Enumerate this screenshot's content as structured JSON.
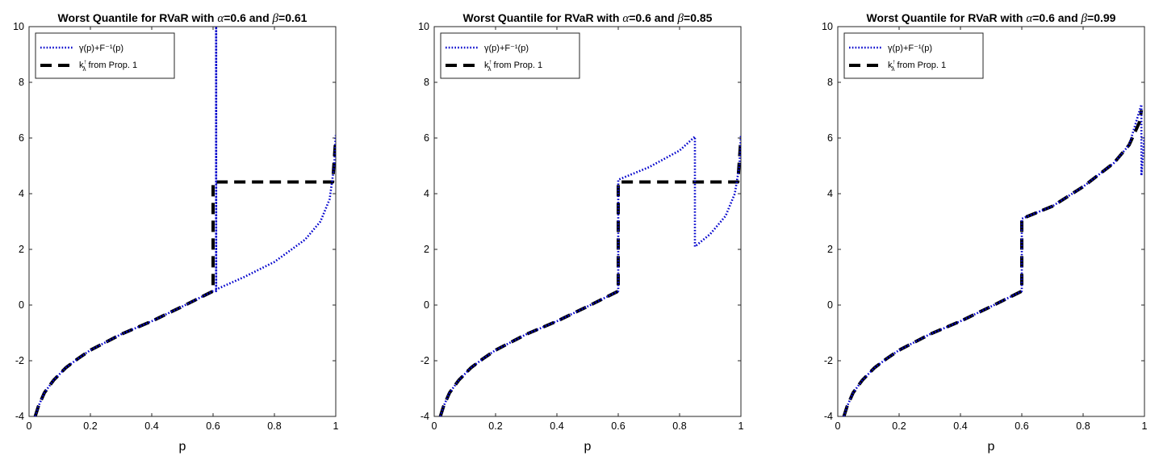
{
  "chart_data": [
    {
      "type": "line",
      "title": "Worst Quantile for RVaR with α=0.6 and β=0.61",
      "title_parts": {
        "lead": "Worst Quantile for RVaR with ",
        "alpha_sym": "α",
        "alpha_val": "=0.6 and ",
        "beta_sym": "β",
        "beta_val": "=0.61"
      },
      "alpha": 0.6,
      "beta": 0.61,
      "xlabel": "p",
      "ylabel": "",
      "xlim": [
        0,
        1
      ],
      "ylim": [
        -4,
        10
      ],
      "xticks": [
        0,
        0.2,
        0.4,
        0.6,
        0.8,
        1
      ],
      "xtick_labels": [
        "0",
        "0.2",
        "0.4",
        "0.6",
        "0.8",
        "1"
      ],
      "yticks": [
        -4,
        -2,
        0,
        2,
        4,
        6,
        8,
        10
      ],
      "ytick_labels": [
        "-4",
        "-2",
        "0",
        "2",
        "4",
        "6",
        "8",
        "10"
      ],
      "legend_position": "top-left",
      "series": [
        {
          "name": "γ(p)+F⁻¹(p)",
          "color": "#0000cc",
          "style": "dotted",
          "points": [
            [
              0.02,
              -4.0
            ],
            [
              0.03,
              -3.65
            ],
            [
              0.05,
              -3.15
            ],
            [
              0.08,
              -2.7
            ],
            [
              0.12,
              -2.25
            ],
            [
              0.16,
              -1.92
            ],
            [
              0.2,
              -1.62
            ],
            [
              0.3,
              -1.05
            ],
            [
              0.4,
              -0.58
            ],
            [
              0.5,
              -0.05
            ],
            [
              0.6,
              0.5
            ],
            [
              0.61,
              0.5
            ],
            [
              0.61,
              10
            ],
            [
              0.61,
              0.56
            ],
            [
              0.7,
              1.0
            ],
            [
              0.8,
              1.55
            ],
            [
              0.9,
              2.35
            ],
            [
              0.95,
              3.0
            ],
            [
              0.98,
              3.8
            ],
            [
              0.995,
              5.0
            ],
            [
              1.0,
              6.1
            ]
          ]
        },
        {
          "name": "k_λ^↑ from Prop. 1",
          "name_parts": {
            "base": "k",
            "sup": "↑",
            "sub": "λ",
            "rest": " from Prop. 1"
          },
          "color": "#000000",
          "style": "dashed",
          "points": [
            [
              0.02,
              -4.0
            ],
            [
              0.03,
              -3.65
            ],
            [
              0.05,
              -3.15
            ],
            [
              0.08,
              -2.7
            ],
            [
              0.12,
              -2.25
            ],
            [
              0.16,
              -1.92
            ],
            [
              0.2,
              -1.62
            ],
            [
              0.3,
              -1.05
            ],
            [
              0.4,
              -0.58
            ],
            [
              0.5,
              -0.05
            ],
            [
              0.6,
              0.5
            ],
            [
              0.6,
              4.42
            ],
            [
              0.99,
              4.42
            ],
            [
              1.0,
              6.0
            ]
          ]
        }
      ]
    },
    {
      "type": "line",
      "title": "Worst Quantile for RVaR with α=0.6 and β=0.85",
      "title_parts": {
        "lead": "Worst Quantile for RVaR with ",
        "alpha_sym": "α",
        "alpha_val": "=0.6 and ",
        "beta_sym": "β",
        "beta_val": "=0.85"
      },
      "alpha": 0.6,
      "beta": 0.85,
      "xlabel": "p",
      "ylabel": "",
      "xlim": [
        0,
        1
      ],
      "ylim": [
        -4,
        10
      ],
      "xticks": [
        0,
        0.2,
        0.4,
        0.6,
        0.8,
        1
      ],
      "xtick_labels": [
        "0",
        "0.2",
        "0.4",
        "0.6",
        "0.8",
        "1"
      ],
      "yticks": [
        -4,
        -2,
        0,
        2,
        4,
        6,
        8,
        10
      ],
      "ytick_labels": [
        "-4",
        "-2",
        "0",
        "2",
        "4",
        "6",
        "8",
        "10"
      ],
      "legend_position": "top-left",
      "series": [
        {
          "name": "γ(p)+F⁻¹(p)",
          "color": "#0000cc",
          "style": "dotted",
          "points": [
            [
              0.02,
              -4.0
            ],
            [
              0.03,
              -3.65
            ],
            [
              0.05,
              -3.15
            ],
            [
              0.08,
              -2.7
            ],
            [
              0.12,
              -2.25
            ],
            [
              0.16,
              -1.92
            ],
            [
              0.2,
              -1.62
            ],
            [
              0.3,
              -1.05
            ],
            [
              0.4,
              -0.58
            ],
            [
              0.5,
              -0.05
            ],
            [
              0.6,
              0.5
            ],
            [
              0.6,
              4.5
            ],
            [
              0.7,
              4.95
            ],
            [
              0.8,
              5.55
            ],
            [
              0.85,
              6.05
            ],
            [
              0.85,
              2.1
            ],
            [
              0.9,
              2.55
            ],
            [
              0.95,
              3.2
            ],
            [
              0.98,
              4.0
            ],
            [
              0.995,
              5.0
            ],
            [
              1.0,
              6.1
            ]
          ]
        },
        {
          "name": "k_λ^↑ from Prop. 1",
          "name_parts": {
            "base": "k",
            "sup": "↑",
            "sub": "λ",
            "rest": " from Prop. 1"
          },
          "color": "#000000",
          "style": "dashed",
          "points": [
            [
              0.02,
              -4.0
            ],
            [
              0.03,
              -3.65
            ],
            [
              0.05,
              -3.15
            ],
            [
              0.08,
              -2.7
            ],
            [
              0.12,
              -2.25
            ],
            [
              0.16,
              -1.92
            ],
            [
              0.2,
              -1.62
            ],
            [
              0.3,
              -1.05
            ],
            [
              0.4,
              -0.58
            ],
            [
              0.5,
              -0.05
            ],
            [
              0.6,
              0.5
            ],
            [
              0.6,
              4.42
            ],
            [
              0.99,
              4.42
            ],
            [
              1.0,
              6.0
            ]
          ]
        }
      ]
    },
    {
      "type": "line",
      "title": "Worst Quantile for RVaR with α=0.6 and β=0.99",
      "title_parts": {
        "lead": "Worst Quantile for RVaR with ",
        "alpha_sym": "α",
        "alpha_val": "=0.6 and ",
        "beta_sym": "β",
        "beta_val": "=0.99"
      },
      "alpha": 0.6,
      "beta": 0.99,
      "xlabel": "p",
      "ylabel": "",
      "xlim": [
        0,
        1
      ],
      "ylim": [
        -4,
        10
      ],
      "xticks": [
        0,
        0.2,
        0.4,
        0.6,
        0.8,
        1
      ],
      "xtick_labels": [
        "0",
        "0.2",
        "0.4",
        "0.6",
        "0.8",
        "1"
      ],
      "yticks": [
        -4,
        -2,
        0,
        2,
        4,
        6,
        8,
        10
      ],
      "ytick_labels": [
        "-4",
        "-2",
        "0",
        "2",
        "4",
        "6",
        "8",
        "10"
      ],
      "legend_position": "top-left",
      "series": [
        {
          "name": "γ(p)+F⁻¹(p)",
          "color": "#0000cc",
          "style": "dotted",
          "points": [
            [
              0.02,
              -4.0
            ],
            [
              0.03,
              -3.65
            ],
            [
              0.05,
              -3.15
            ],
            [
              0.08,
              -2.7
            ],
            [
              0.12,
              -2.25
            ],
            [
              0.16,
              -1.92
            ],
            [
              0.2,
              -1.62
            ],
            [
              0.3,
              -1.05
            ],
            [
              0.4,
              -0.58
            ],
            [
              0.5,
              -0.05
            ],
            [
              0.6,
              0.5
            ],
            [
              0.6,
              3.1
            ],
            [
              0.7,
              3.55
            ],
            [
              0.8,
              4.25
            ],
            [
              0.9,
              5.1
            ],
            [
              0.95,
              5.75
            ],
            [
              0.99,
              7.2
            ],
            [
              0.99,
              4.65
            ],
            [
              1.0,
              6.1
            ]
          ]
        },
        {
          "name": "k_λ^↑ from Prop. 1",
          "name_parts": {
            "base": "k",
            "sup": "↑",
            "sub": "λ",
            "rest": " from Prop. 1"
          },
          "color": "#000000",
          "style": "dashed",
          "points": [
            [
              0.02,
              -4.0
            ],
            [
              0.03,
              -3.65
            ],
            [
              0.05,
              -3.15
            ],
            [
              0.08,
              -2.7
            ],
            [
              0.12,
              -2.25
            ],
            [
              0.16,
              -1.92
            ],
            [
              0.2,
              -1.62
            ],
            [
              0.3,
              -1.05
            ],
            [
              0.4,
              -0.58
            ],
            [
              0.5,
              -0.05
            ],
            [
              0.6,
              0.5
            ],
            [
              0.6,
              3.1
            ],
            [
              0.7,
              3.55
            ],
            [
              0.8,
              4.25
            ],
            [
              0.9,
              5.1
            ],
            [
              0.95,
              5.75
            ],
            [
              0.985,
              6.6
            ],
            [
              0.99,
              7.0
            ]
          ]
        }
      ]
    }
  ]
}
